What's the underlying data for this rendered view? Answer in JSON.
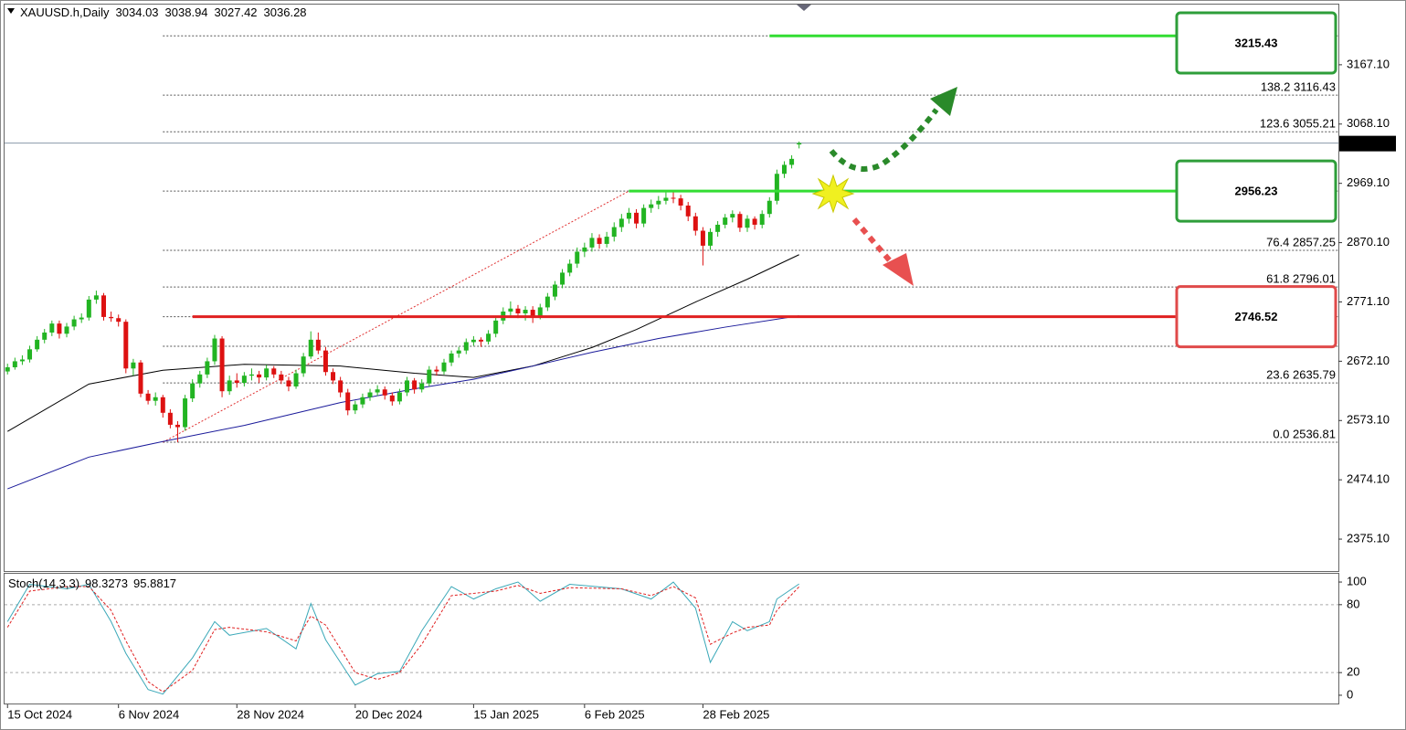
{
  "chart_data": [
    {
      "type": "candlestick",
      "title": "XAUUSD.h,Daily",
      "bull_color": "#22b422",
      "bear_color": "#dd1111",
      "xlim": [
        -0.4,
        179.9
      ],
      "ylim": [
        2321.8,
        3267.6
      ],
      "yticks": [
        {
          "value": 2375.1,
          "label": "2375.10"
        },
        {
          "value": 2474.1,
          "label": "2474.10"
        },
        {
          "value": 2573.1,
          "label": "2573.10"
        },
        {
          "value": 2672.1,
          "label": "2672.10"
        },
        {
          "value": 2771.1,
          "label": "2771.10"
        },
        {
          "value": 2870.1,
          "label": "2870.10"
        },
        {
          "value": 2969.1,
          "label": "2969.10"
        },
        {
          "value": 3068.1,
          "label": "3068.10"
        },
        {
          "value": 3167.1,
          "label": "3167.10"
        }
      ],
      "xticks": [
        {
          "value": 0,
          "label": "15 Oct 2024"
        },
        {
          "value": 15,
          "label": "6 Nov 2024"
        },
        {
          "value": 31,
          "label": "28 Nov 2024"
        },
        {
          "value": 47,
          "label": "20 Dec 2024"
        },
        {
          "value": 63,
          "label": "15 Jan 2025"
        },
        {
          "value": 78,
          "label": "6 Feb 2025"
        },
        {
          "value": 94,
          "label": "28 Feb 2025"
        }
      ],
      "candles": [
        [
          2655,
          2668,
          2650,
          2662
        ],
        [
          2662,
          2678,
          2658,
          2672
        ],
        [
          2672,
          2682,
          2666,
          2675
        ],
        [
          2675,
          2698,
          2670,
          2692
        ],
        [
          2692,
          2714,
          2688,
          2708
        ],
        [
          2708,
          2726,
          2702,
          2720
        ],
        [
          2720,
          2740,
          2714,
          2735
        ],
        [
          2735,
          2740,
          2710,
          2718
        ],
        [
          2718,
          2736,
          2712,
          2730
        ],
        [
          2730,
          2748,
          2724,
          2742
        ],
        [
          2742,
          2752,
          2736,
          2745
        ],
        [
          2745,
          2781,
          2740,
          2775
        ],
        [
          2775,
          2790,
          2768,
          2782
        ],
        [
          2782,
          2786,
          2740,
          2746
        ],
        [
          2746,
          2755,
          2738,
          2744
        ],
        [
          2744,
          2750,
          2730,
          2738
        ],
        [
          2738,
          2742,
          2652,
          2660
        ],
        [
          2660,
          2676,
          2648,
          2670
        ],
        [
          2670,
          2674,
          2612,
          2618
        ],
        [
          2618,
          2624,
          2600,
          2606
        ],
        [
          2606,
          2620,
          2598,
          2612
        ],
        [
          2612,
          2616,
          2578,
          2586
        ],
        [
          2586,
          2592,
          2560,
          2566
        ],
        [
          2566,
          2572,
          2537,
          2562
        ],
        [
          2562,
          2616,
          2556,
          2610
        ],
        [
          2610,
          2642,
          2604,
          2635
        ],
        [
          2635,
          2656,
          2628,
          2650
        ],
        [
          2650,
          2678,
          2644,
          2672
        ],
        [
          2672,
          2716,
          2666,
          2710
        ],
        [
          2710,
          2714,
          2612,
          2622
        ],
        [
          2622,
          2648,
          2616,
          2640
        ],
        [
          2640,
          2652,
          2628,
          2636
        ],
        [
          2636,
          2654,
          2630,
          2648
        ],
        [
          2648,
          2660,
          2640,
          2650
        ],
        [
          2650,
          2656,
          2636,
          2645
        ],
        [
          2645,
          2666,
          2640,
          2660
        ],
        [
          2660,
          2664,
          2644,
          2650
        ],
        [
          2650,
          2656,
          2634,
          2640
        ],
        [
          2640,
          2646,
          2622,
          2630
        ],
        [
          2630,
          2658,
          2626,
          2652
        ],
        [
          2652,
          2686,
          2646,
          2680
        ],
        [
          2680,
          2722,
          2676,
          2708
        ],
        [
          2708,
          2720,
          2684,
          2690
        ],
        [
          2690,
          2696,
          2648,
          2654
        ],
        [
          2654,
          2660,
          2634,
          2640
        ],
        [
          2640,
          2646,
          2612,
          2620
        ],
        [
          2620,
          2626,
          2582,
          2590
        ],
        [
          2590,
          2606,
          2584,
          2600
        ],
        [
          2600,
          2618,
          2594,
          2612
        ],
        [
          2612,
          2626,
          2606,
          2620
        ],
        [
          2620,
          2632,
          2614,
          2625
        ],
        [
          2625,
          2630,
          2608,
          2615
        ],
        [
          2615,
          2620,
          2598,
          2605
        ],
        [
          2605,
          2626,
          2600,
          2620
        ],
        [
          2620,
          2646,
          2614,
          2640
        ],
        [
          2640,
          2644,
          2618,
          2625
        ],
        [
          2625,
          2642,
          2620,
          2635
        ],
        [
          2635,
          2664,
          2630,
          2658
        ],
        [
          2658,
          2664,
          2648,
          2655
        ],
        [
          2655,
          2676,
          2650,
          2670
        ],
        [
          2670,
          2690,
          2664,
          2685
        ],
        [
          2685,
          2696,
          2678,
          2690
        ],
        [
          2690,
          2710,
          2684,
          2704
        ],
        [
          2704,
          2714,
          2698,
          2708
        ],
        [
          2708,
          2712,
          2696,
          2705
        ],
        [
          2705,
          2724,
          2700,
          2718
        ],
        [
          2718,
          2746,
          2712,
          2740
        ],
        [
          2740,
          2762,
          2734,
          2755
        ],
        [
          2755,
          2772,
          2748,
          2760
        ],
        [
          2760,
          2766,
          2744,
          2752
        ],
        [
          2752,
          2764,
          2740,
          2758
        ],
        [
          2758,
          2764,
          2736,
          2748
        ],
        [
          2748,
          2768,
          2742,
          2762
        ],
        [
          2762,
          2786,
          2756,
          2780
        ],
        [
          2780,
          2806,
          2774,
          2800
        ],
        [
          2800,
          2826,
          2794,
          2820
        ],
        [
          2820,
          2842,
          2814,
          2835
        ],
        [
          2835,
          2862,
          2828,
          2855
        ],
        [
          2855,
          2870,
          2846,
          2862
        ],
        [
          2862,
          2886,
          2855,
          2878
        ],
        [
          2878,
          2884,
          2860,
          2868
        ],
        [
          2868,
          2888,
          2862,
          2880
        ],
        [
          2880,
          2904,
          2872,
          2896
        ],
        [
          2896,
          2918,
          2888,
          2910
        ],
        [
          2910,
          2928,
          2902,
          2920
        ],
        [
          2920,
          2926,
          2894,
          2902
        ],
        [
          2902,
          2934,
          2896,
          2928
        ],
        [
          2928,
          2942,
          2920,
          2934
        ],
        [
          2934,
          2948,
          2926,
          2940
        ],
        [
          2940,
          2954,
          2934,
          2945
        ],
        [
          2945,
          2956,
          2936,
          2944
        ],
        [
          2944,
          2950,
          2924,
          2932
        ],
        [
          2932,
          2938,
          2906,
          2914
        ],
        [
          2914,
          2920,
          2882,
          2890
        ],
        [
          2890,
          2896,
          2832,
          2865
        ],
        [
          2865,
          2894,
          2858,
          2888
        ],
        [
          2888,
          2906,
          2880,
          2900
        ],
        [
          2900,
          2918,
          2894,
          2912
        ],
        [
          2912,
          2924,
          2904,
          2918
        ],
        [
          2918,
          2922,
          2888,
          2895
        ],
        [
          2895,
          2916,
          2888,
          2910
        ],
        [
          2910,
          2914,
          2892,
          2900
        ],
        [
          2900,
          2924,
          2894,
          2918
        ],
        [
          2918,
          2946,
          2912,
          2940
        ],
        [
          2940,
          2992,
          2934,
          2985
        ],
        [
          2985,
          3006,
          2978,
          3000
        ],
        [
          3000,
          3016,
          2994,
          3010
        ],
        [
          3034.03,
          3038.94,
          3027.42,
          3036.28
        ]
      ],
      "lines": [
        {
          "color": "#000000",
          "x": [
            0,
            11,
            21,
            32,
            45,
            55,
            63,
            71,
            79,
            85,
            93,
            100,
            107
          ],
          "values": [
            2555,
            2634,
            2657,
            2667,
            2664,
            2652,
            2645,
            2664,
            2695,
            2725,
            2771,
            2809,
            2850
          ]
        },
        {
          "color": "#1a1a9a",
          "x": [
            0,
            11,
            21,
            32,
            45,
            55,
            63,
            71,
            79,
            88,
            97,
            107
          ],
          "values": [
            2459,
            2512,
            2538,
            2565,
            2603,
            2626,
            2642,
            2664,
            2687,
            2710,
            2729,
            2748
          ]
        }
      ],
      "fib": {
        "color": "#555555",
        "trend_color": "#e03030",
        "anchor_x": [
          21,
          84
        ],
        "levels": [
          {
            "value": 2536.81,
            "label": "0.0 2536.81"
          },
          {
            "value": 2635.79,
            "label": "23.6 2635.79"
          },
          {
            "value": 2697.0
          },
          {
            "value": 2746.52
          },
          {
            "value": 2796.01,
            "label": "61.8 2796.01"
          },
          {
            "value": 2857.25,
            "label": "76.4 2857.25"
          },
          {
            "value": 2956.23
          },
          {
            "value": 3055.21,
            "label": "123.6 3055.21"
          },
          {
            "value": 3116.43,
            "label": "138.2 3116.43"
          },
          {
            "value": 3215.43
          }
        ]
      },
      "key_levels": [
        {
          "value": 3215.43,
          "color": "#2e9e3a",
          "line_color": "#33dd33",
          "from_x": 103
        },
        {
          "value": 2956.23,
          "color": "#2e9e3a",
          "line_color": "#33dd33",
          "from_x": 84
        },
        {
          "value": 2746.52,
          "color": "#e04a4a",
          "line_color": "#e02020",
          "from_x": 25
        }
      ]
    },
    {
      "type": "line",
      "title": "Stoch(14,3,3)",
      "ylim": [
        -7.3,
        107.3
      ],
      "yticks": [
        0,
        20,
        80,
        100
      ],
      "grid_levels": [
        20,
        80
      ],
      "series": [
        {
          "color": "#3aa8b8",
          "x": [
            0,
            3,
            8,
            11,
            14,
            16,
            19,
            21,
            25,
            28,
            30,
            35,
            39,
            41,
            43,
            47,
            50,
            53,
            56,
            60,
            63,
            66,
            69,
            72,
            76,
            83,
            87,
            90,
            93,
            95,
            98,
            100,
            103,
            104,
            107
          ],
          "values": [
            65,
            98,
            94,
            98,
            65,
            37,
            5,
            1,
            33,
            65,
            53,
            59,
            41,
            81,
            49,
            9,
            19,
            21,
            57,
            96,
            85,
            94,
            100,
            83,
            98,
            94,
            85,
            100,
            77,
            29,
            65,
            57,
            65,
            85,
            98.3273
          ]
        },
        {
          "color": "#e02020",
          "x": [
            0,
            3,
            8,
            11,
            14,
            16,
            19,
            21,
            25,
            28,
            30,
            35,
            39,
            41,
            43,
            47,
            50,
            53,
            56,
            60,
            63,
            66,
            69,
            72,
            76,
            83,
            87,
            90,
            93,
            95,
            98,
            100,
            103,
            104,
            107
          ],
          "values": [
            60,
            92,
            96,
            96,
            75,
            48,
            12,
            3,
            22,
            58,
            60,
            56,
            48,
            70,
            62,
            20,
            14,
            20,
            45,
            88,
            90,
            92,
            97,
            90,
            95,
            94,
            88,
            96,
            86,
            45,
            55,
            60,
            62,
            75,
            95.8817
          ]
        }
      ]
    }
  ]
}
